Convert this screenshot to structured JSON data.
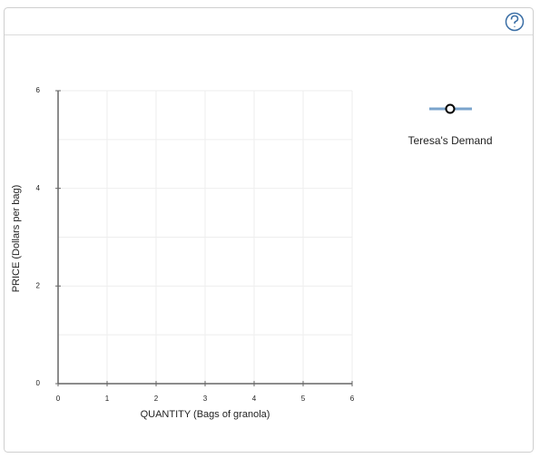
{
  "chart_data": {
    "type": "line",
    "xlabel": "QUANTITY (Bags of granola)",
    "ylabel": "PRICE (Dollars per bag)",
    "x": [],
    "series": [
      {
        "name": "Teresa's Demand",
        "color": "#7ba4cc",
        "values": []
      }
    ],
    "xlim": [
      0,
      6
    ],
    "ylim": [
      0,
      6
    ],
    "xticks": [
      0,
      1,
      2,
      3,
      4,
      5,
      6
    ],
    "yticks": [
      0,
      2,
      4,
      6
    ],
    "ygrid": [
      1,
      2,
      3,
      4,
      5,
      6
    ],
    "grid": true
  }
}
